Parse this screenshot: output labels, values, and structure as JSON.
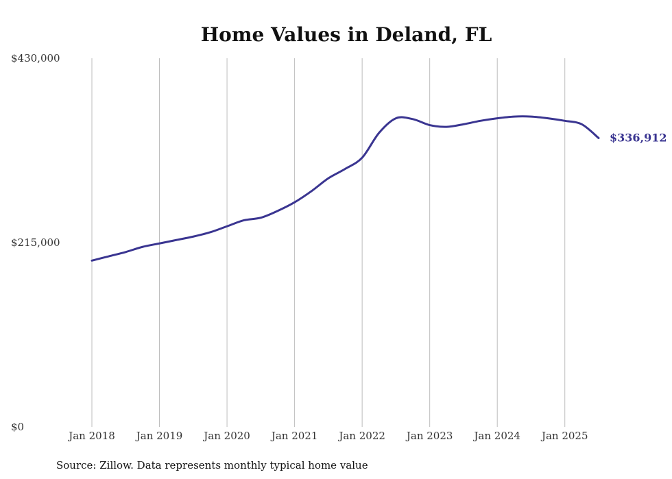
{
  "chart_data": {
    "type": "line",
    "title": "Home Values in Deland, FL",
    "xlabel": "",
    "ylabel": "",
    "ylim": [
      0,
      430000
    ],
    "y_ticks": [
      0,
      215000,
      430000
    ],
    "y_tick_labels": [
      "$0",
      "$215,000",
      "$430,000"
    ],
    "x_ticks": [
      "2018-01",
      "2019-01",
      "2020-01",
      "2021-01",
      "2022-01",
      "2023-01",
      "2024-01",
      "2025-01"
    ],
    "x_tick_labels": [
      "Jan 2018",
      "Jan 2019",
      "Jan 2020",
      "Jan 2021",
      "Jan 2022",
      "Jan 2023",
      "Jan 2024",
      "Jan 2025"
    ],
    "xlim": [
      "2018-01",
      "2025-07"
    ],
    "grid": "vertical lines at x ticks",
    "series": [
      {
        "color": "#3a3591",
        "x": [
          "2018-01",
          "2018-04",
          "2018-07",
          "2018-10",
          "2019-01",
          "2019-04",
          "2019-07",
          "2019-10",
          "2020-01",
          "2020-04",
          "2020-07",
          "2020-10",
          "2021-01",
          "2021-04",
          "2021-07",
          "2021-10",
          "2022-01",
          "2022-04",
          "2022-07",
          "2022-10",
          "2023-01",
          "2023-04",
          "2023-07",
          "2023-10",
          "2024-01",
          "2024-04",
          "2024-07",
          "2024-10",
          "2025-01",
          "2025-04",
          "2025-07"
        ],
        "values": [
          194000,
          199000,
          204000,
          210000,
          214000,
          218000,
          222000,
          227000,
          234000,
          241000,
          244000,
          252000,
          262000,
          275000,
          290000,
          301000,
          314000,
          343000,
          360000,
          359000,
          352000,
          350000,
          353000,
          357000,
          360000,
          362000,
          362000,
          360000,
          357000,
          353000,
          336912
        ]
      }
    ],
    "end_label": "$336,912",
    "source": "Source: Zillow. Data represents monthly typical home value"
  }
}
